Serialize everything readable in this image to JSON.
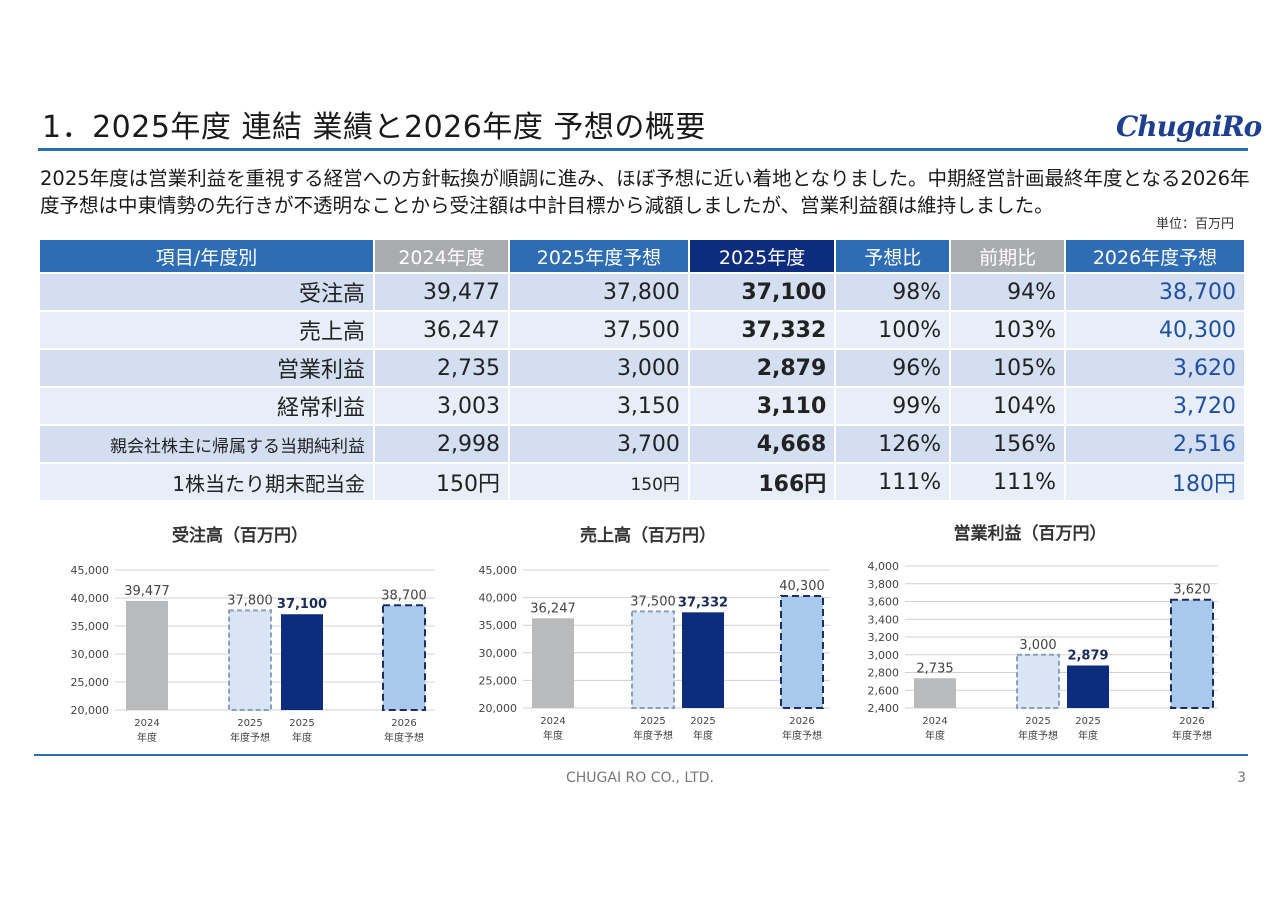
{
  "title": "1．2025年度 連結 業績と2026年度 予想の概要",
  "logo": "ChugaiRo",
  "summary": "2025年度は営業利益を重視する経営への方針転換が順調に進み、ほぼ予想に近い着地となりました。中期経営計画最終年度となる2026年度予想は中東情勢の先行きが不透明なことから受注額は中計目標から減額しましたが、営業利益額は維持しました。",
  "unit": "単位：百万円",
  "table": {
    "headers": [
      "項目/年度別",
      "2024年度",
      "2025年度予想",
      "2025年度",
      "予想比",
      "前期比",
      "2026年度予想"
    ],
    "rows": [
      [
        "受注高",
        "39,477",
        "37,800",
        "37,100",
        "98%",
        "94%",
        "38,700"
      ],
      [
        "売上高",
        "36,247",
        "37,500",
        "37,332",
        "100%",
        "103%",
        "40,300"
      ],
      [
        "営業利益",
        "2,735",
        "3,000",
        "2,879",
        "96%",
        "105%",
        "3,620"
      ],
      [
        "経常利益",
        "3,003",
        "3,150",
        "3,110",
        "99%",
        "104%",
        "3,720"
      ],
      [
        "親会社株主に帰属する当期純利益",
        "2,998",
        "3,700",
        "4,668",
        "126%",
        "156%",
        "2,516"
      ],
      [
        "1株当たり期末配当金",
        "150円",
        "150円",
        "166円",
        "111%",
        "111%",
        "180円"
      ]
    ]
  },
  "colors": {
    "accent": "#2e6db4",
    "dark": "#0d2c7e",
    "gray_bar": "#b9babc",
    "light_bar": "#d9e5f4",
    "forecast_bar": "#a9c9ec",
    "header_gray": "#a9abae"
  },
  "chart_data": [
    {
      "type": "bar",
      "title": "受注高（百万円）",
      "categories": [
        "2024\n年度",
        "2025\n年度予想",
        "2025\n年度",
        "2026\n年度予想"
      ],
      "values": [
        39477,
        37800,
        37100,
        38700
      ],
      "labels": [
        "39,477",
        "37,800",
        "37,100",
        "38,700"
      ],
      "ylim": [
        20000,
        45000
      ],
      "yticks": [
        "20,000",
        "25,000",
        "30,000",
        "35,000",
        "40,000",
        "45,000"
      ],
      "grid": true
    },
    {
      "type": "bar",
      "title": "売上高（百万円）",
      "categories": [
        "2024\n年度",
        "2025\n年度予想",
        "2025\n年度",
        "2026\n年度予想"
      ],
      "values": [
        36247,
        37500,
        37332,
        40300
      ],
      "labels": [
        "36,247",
        "37,500",
        "37,332",
        "40,300"
      ],
      "ylim": [
        20000,
        45000
      ],
      "yticks": [
        "20,000",
        "25,000",
        "30,000",
        "35,000",
        "40,000",
        "45,000"
      ],
      "grid": true
    },
    {
      "type": "bar",
      "title": "営業利益（百万円）",
      "categories": [
        "2024\n年度",
        "2025\n年度予想",
        "2025\n年度",
        "2026\n年度予想"
      ],
      "values": [
        2735,
        3000,
        2879,
        3620
      ],
      "labels": [
        "2,735",
        "3,000",
        "2,879",
        "3,620"
      ],
      "ylim": [
        2400,
        4000
      ],
      "yticks": [
        "2,400",
        "2,600",
        "2,800",
        "3,000",
        "3,200",
        "3,400",
        "3,600",
        "3,800",
        "4,000"
      ],
      "grid": true
    }
  ],
  "footer": "CHUGAI RO CO., LTD.",
  "page": "3"
}
